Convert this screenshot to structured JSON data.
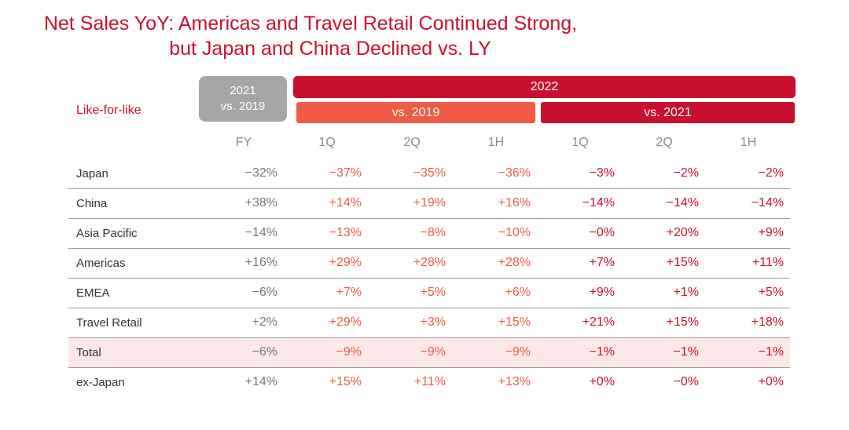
{
  "title": {
    "line1": "Net Sales YoY: Americas and Travel Retail Continued Strong,",
    "line2": "but Japan and China Declined vs. LY"
  },
  "header": {
    "like_for_like": "Like-for-like",
    "box_2021_year": "2021",
    "box_2021_vs": "vs. 2019",
    "box_2022": "2022",
    "vs_2019": "vs. 2019",
    "vs_2021": "vs. 2021"
  },
  "columns": [
    "FY",
    "1Q",
    "2Q",
    "1H",
    "1Q",
    "2Q",
    "1H"
  ],
  "rows": [
    {
      "name": "Japan",
      "values": [
        "−32%",
        "−37%",
        "−35%",
        "−36%",
        "−3%",
        "−2%",
        "−2%"
      ]
    },
    {
      "name": "China",
      "values": [
        "+38%",
        "+14%",
        "+19%",
        "+16%",
        "−14%",
        "−14%",
        "−14%"
      ]
    },
    {
      "name": "Asia Pacific",
      "values": [
        "−14%",
        "−13%",
        "−8%",
        "−10%",
        "−0%",
        "+20%",
        "+9%"
      ]
    },
    {
      "name": "Americas",
      "values": [
        "+16%",
        "+29%",
        "+28%",
        "+28%",
        "+7%",
        "+15%",
        "+11%"
      ]
    },
    {
      "name": "EMEA",
      "values": [
        "−6%",
        "+7%",
        "+5%",
        "+6%",
        "+9%",
        "+1%",
        "+5%"
      ]
    },
    {
      "name": "Travel Retail",
      "values": [
        "+2%",
        "+29%",
        "+3%",
        "+15%",
        "+21%",
        "+15%",
        "+18%"
      ]
    },
    {
      "name": "Total",
      "values": [
        "−6%",
        "−9%",
        "−9%",
        "−9%",
        "−1%",
        "−1%",
        "−1%"
      ]
    },
    {
      "name": "ex-Japan",
      "values": [
        "+14%",
        "+15%",
        "+11%",
        "+13%",
        "+0%",
        "−0%",
        "+0%"
      ]
    }
  ],
  "colors": {
    "brand_red": "#c8102e",
    "orange": "#ef5b44",
    "grey_box": "#a6a6a6",
    "total_row_bg": "#fde8e8"
  }
}
